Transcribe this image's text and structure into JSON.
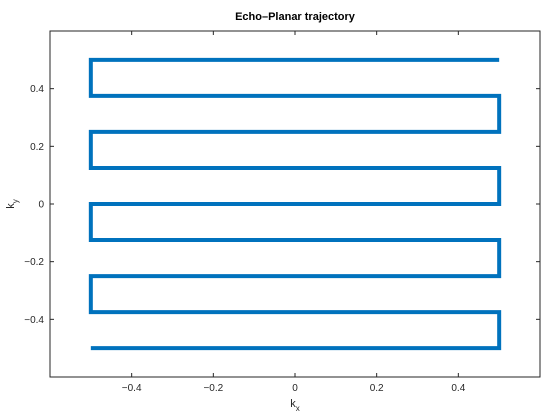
{
  "chart_data": {
    "type": "line",
    "title": "Echo–Planar trajectory",
    "xlabel": {
      "base": "k",
      "sub": "x"
    },
    "ylabel": {
      "base": "k",
      "sub": "y"
    },
    "xlim": [
      -0.6,
      0.6
    ],
    "ylim": [
      -0.6,
      0.6
    ],
    "xticks": [
      -0.4,
      -0.2,
      0,
      0.2,
      0.4
    ],
    "xtick_labels": [
      "−0.4",
      "−0.2",
      "0",
      "0.2",
      "0.4"
    ],
    "yticks": [
      -0.4,
      -0.2,
      0,
      0.2,
      0.4
    ],
    "ytick_labels": [
      "−0.4",
      "−0.2",
      "0",
      "0.2",
      "0.4"
    ],
    "grid": false,
    "series": [
      {
        "color": "#0072bd",
        "x": [
          0.5,
          -0.5,
          -0.5,
          0.5,
          0.5,
          -0.5,
          -0.5,
          0.5,
          0.5,
          -0.5,
          -0.5,
          0.5,
          0.5,
          -0.5,
          -0.5,
          0.5,
          0.5,
          -0.5
        ],
        "y": [
          0.5,
          0.5,
          0.375,
          0.375,
          0.25,
          0.25,
          0.125,
          0.125,
          0.0,
          0.0,
          -0.125,
          -0.125,
          -0.25,
          -0.25,
          -0.375,
          -0.375,
          -0.5,
          -0.5
        ]
      }
    ]
  }
}
